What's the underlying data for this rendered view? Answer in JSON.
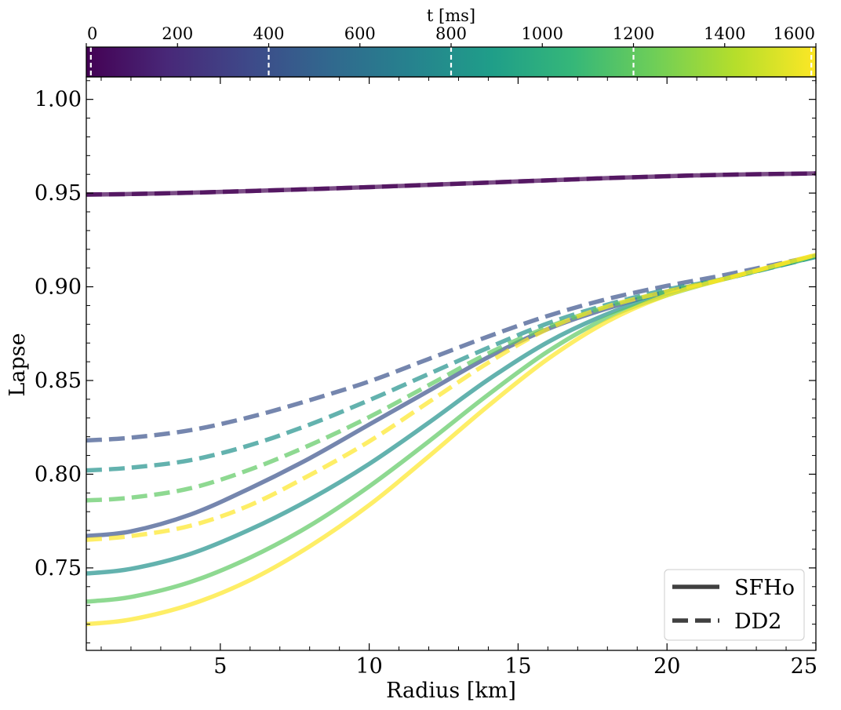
{
  "chart_data": {
    "type": "line",
    "xlabel": "Radius [km]",
    "ylabel": "Lapse",
    "xlim": [
      0.5,
      25
    ],
    "ylim": [
      0.706,
      1.012
    ],
    "grid": false,
    "x_ticks": [
      {
        "value": 5,
        "label": "5"
      },
      {
        "value": 10,
        "label": "10"
      },
      {
        "value": 15,
        "label": "15"
      },
      {
        "value": 20,
        "label": "20"
      },
      {
        "value": 25,
        "label": "25"
      }
    ],
    "y_ticks": [
      {
        "value": 0.75,
        "label": "0.75"
      },
      {
        "value": 0.8,
        "label": "0.80"
      },
      {
        "value": 0.85,
        "label": "0.85"
      },
      {
        "value": 0.9,
        "label": "0.90"
      },
      {
        "value": 0.95,
        "label": "0.95"
      },
      {
        "value": 1.0,
        "label": "1.00"
      }
    ],
    "colorbar": {
      "label": "t [ms]",
      "range": [
        0,
        1600
      ],
      "ticks": [
        {
          "value": 0,
          "label": "0"
        },
        {
          "value": 200,
          "label": "200"
        },
        {
          "value": 400,
          "label": "400"
        },
        {
          "value": 600,
          "label": "600"
        },
        {
          "value": 800,
          "label": "800"
        },
        {
          "value": 1000,
          "label": "1000"
        },
        {
          "value": 1200,
          "label": "1200"
        },
        {
          "value": 1400,
          "label": "1400"
        },
        {
          "value": 1600,
          "label": "1600"
        }
      ],
      "markers_ms": [
        10,
        400,
        800,
        1200,
        1590
      ],
      "colormap": [
        "#440154",
        "#482878",
        "#3e4989",
        "#31688e",
        "#26828e",
        "#1f9e89",
        "#35b779",
        "#6ece58",
        "#b5de2b",
        "#fde725"
      ]
    },
    "legend": {
      "location": "bottom-right",
      "entries": [
        {
          "label": "SFHo",
          "style": "solid"
        },
        {
          "label": "DD2",
          "style": "dashed"
        }
      ]
    },
    "x": [
      0.5,
      2,
      4,
      6,
      8,
      10,
      12,
      14,
      16,
      18,
      20,
      22,
      25
    ],
    "series": [
      {
        "name": "SFHo t=10ms",
        "eos": "SFHo",
        "t_ms": 10,
        "color": "#440154",
        "values": [
          0.9492,
          0.9495,
          0.9502,
          0.9511,
          0.9521,
          0.9532,
          0.9544,
          0.9556,
          0.9568,
          0.958,
          0.959,
          0.9598,
          0.9605
        ]
      },
      {
        "name": "DD2 t=10ms",
        "eos": "DD2",
        "t_ms": 10,
        "color": "#440154",
        "values": [
          0.9492,
          0.9495,
          0.9502,
          0.9511,
          0.9521,
          0.9532,
          0.9544,
          0.9556,
          0.9568,
          0.958,
          0.959,
          0.9598,
          0.9605
        ]
      },
      {
        "name": "SFHo t=400ms",
        "eos": "SFHo",
        "t_ms": 400,
        "color": "#3b528b",
        "values": [
          0.767,
          0.7695,
          0.7785,
          0.7925,
          0.8085,
          0.8265,
          0.8445,
          0.8625,
          0.8775,
          0.8885,
          0.8975,
          0.9045,
          0.9165
        ]
      },
      {
        "name": "DD2 t=400ms",
        "eos": "DD2",
        "t_ms": 400,
        "color": "#3b528b",
        "values": [
          0.818,
          0.8195,
          0.8235,
          0.8305,
          0.8395,
          0.8495,
          0.8615,
          0.8735,
          0.8845,
          0.8935,
          0.9005,
          0.9065,
          0.9165
        ]
      },
      {
        "name": "SFHo t=800ms",
        "eos": "SFHo",
        "t_ms": 800,
        "color": "#21918c",
        "values": [
          0.747,
          0.7495,
          0.7575,
          0.7705,
          0.7865,
          0.8055,
          0.8275,
          0.8505,
          0.8705,
          0.8855,
          0.8965,
          0.9045,
          0.916
        ]
      },
      {
        "name": "DD2 t=800ms",
        "eos": "DD2",
        "t_ms": 800,
        "color": "#21918c",
        "values": [
          0.802,
          0.8035,
          0.8075,
          0.8155,
          0.8265,
          0.8395,
          0.8535,
          0.8675,
          0.8805,
          0.8905,
          0.8985,
          0.9045,
          0.916
        ]
      },
      {
        "name": "SFHo t=1200ms",
        "eos": "SFHo",
        "t_ms": 1200,
        "color": "#5ec962",
        "values": [
          0.732,
          0.7345,
          0.7425,
          0.7555,
          0.7725,
          0.7935,
          0.8175,
          0.8425,
          0.8655,
          0.8835,
          0.8955,
          0.9045,
          0.9165
        ]
      },
      {
        "name": "DD2 t=1200ms",
        "eos": "DD2",
        "t_ms": 1200,
        "color": "#5ec962",
        "values": [
          0.786,
          0.7875,
          0.7925,
          0.8025,
          0.8155,
          0.8305,
          0.8475,
          0.8645,
          0.8785,
          0.8895,
          0.8975,
          0.9045,
          0.9165
        ]
      },
      {
        "name": "SFHo t=1590ms",
        "eos": "SFHo",
        "t_ms": 1590,
        "color": "#fde725",
        "values": [
          0.72,
          0.7225,
          0.7305,
          0.7435,
          0.7615,
          0.7835,
          0.8095,
          0.8365,
          0.8615,
          0.8815,
          0.8955,
          0.9045,
          0.917
        ]
      },
      {
        "name": "DD2 t=1590ms",
        "eos": "DD2",
        "t_ms": 1590,
        "color": "#fde725",
        "values": [
          0.765,
          0.767,
          0.7725,
          0.7835,
          0.7995,
          0.8175,
          0.8385,
          0.8595,
          0.8775,
          0.8895,
          0.8975,
          0.9045,
          0.917
        ]
      }
    ]
  }
}
